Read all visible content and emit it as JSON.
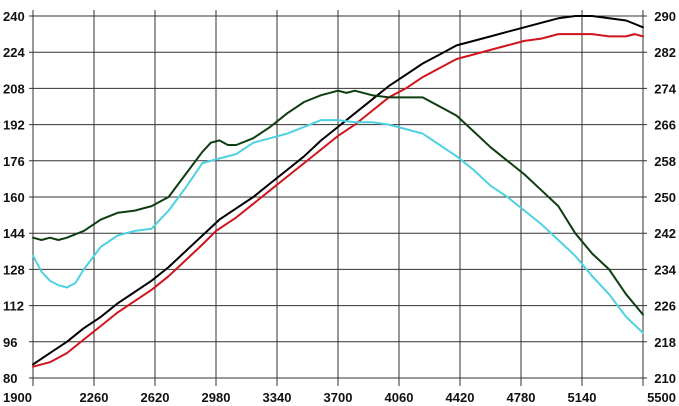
{
  "chart_data": {
    "type": "line",
    "title": "",
    "xlabel": "",
    "ylabel": "",
    "ylabel_right": "",
    "xlim": [
      1900,
      5500
    ],
    "ylim": [
      80,
      240
    ],
    "ylim_right": [
      210,
      290
    ],
    "x_ticks": [
      "1900",
      "2260",
      "2620",
      "2980",
      "3340",
      "3700",
      "4060",
      "4420",
      "4780",
      "5140",
      "5500"
    ],
    "y_ticks_left": [
      "80",
      "96",
      "112",
      "128",
      "144",
      "160",
      "176",
      "192",
      "208",
      "224",
      "240"
    ],
    "y_ticks_right": [
      "210",
      "218",
      "226",
      "234",
      "242",
      "250",
      "258",
      "266",
      "274",
      "282",
      "290"
    ],
    "grid": true,
    "series": [
      {
        "color": "#000000",
        "axis": "left",
        "points": [
          [
            1900,
            86
          ],
          [
            2000,
            91
          ],
          [
            2100,
            96
          ],
          [
            2200,
            102
          ],
          [
            2300,
            107
          ],
          [
            2400,
            113
          ],
          [
            2500,
            118
          ],
          [
            2600,
            123
          ],
          [
            2700,
            129
          ],
          [
            2800,
            136
          ],
          [
            2900,
            143
          ],
          [
            3000,
            150
          ],
          [
            3100,
            155
          ],
          [
            3200,
            160
          ],
          [
            3300,
            166
          ],
          [
            3400,
            172
          ],
          [
            3500,
            178
          ],
          [
            3600,
            185
          ],
          [
            3700,
            191
          ],
          [
            3800,
            197
          ],
          [
            3900,
            203
          ],
          [
            4000,
            209
          ],
          [
            4100,
            214
          ],
          [
            4200,
            219
          ],
          [
            4300,
            223
          ],
          [
            4400,
            227
          ],
          [
            4500,
            229
          ],
          [
            4600,
            231
          ],
          [
            4700,
            233
          ],
          [
            4800,
            235
          ],
          [
            4900,
            237
          ],
          [
            5000,
            239
          ],
          [
            5100,
            240
          ],
          [
            5200,
            240
          ],
          [
            5300,
            239
          ],
          [
            5400,
            238
          ],
          [
            5500,
            235
          ]
        ]
      },
      {
        "color": "#d0141e",
        "axis": "left",
        "points": [
          [
            1900,
            85
          ],
          [
            2000,
            87
          ],
          [
            2100,
            91
          ],
          [
            2200,
            97
          ],
          [
            2300,
            103
          ],
          [
            2400,
            109
          ],
          [
            2500,
            114
          ],
          [
            2600,
            119
          ],
          [
            2700,
            125
          ],
          [
            2800,
            132
          ],
          [
            2900,
            139
          ],
          [
            2980,
            145
          ],
          [
            3100,
            151
          ],
          [
            3200,
            157
          ],
          [
            3300,
            163
          ],
          [
            3400,
            169
          ],
          [
            3500,
            175
          ],
          [
            3600,
            181
          ],
          [
            3700,
            187
          ],
          [
            3800,
            192
          ],
          [
            3900,
            198
          ],
          [
            4000,
            204
          ],
          [
            4100,
            208
          ],
          [
            4200,
            213
          ],
          [
            4300,
            217
          ],
          [
            4400,
            221
          ],
          [
            4500,
            223
          ],
          [
            4600,
            225
          ],
          [
            4700,
            227
          ],
          [
            4800,
            229
          ],
          [
            4900,
            230
          ],
          [
            5000,
            232
          ],
          [
            5100,
            232
          ],
          [
            5200,
            232
          ],
          [
            5300,
            231
          ],
          [
            5400,
            231
          ],
          [
            5450,
            232
          ],
          [
            5500,
            231
          ]
        ]
      },
      {
        "color": "#0d3d10",
        "axis": "left",
        "points": [
          [
            1900,
            142
          ],
          [
            1950,
            141
          ],
          [
            2000,
            142
          ],
          [
            2050,
            141
          ],
          [
            2100,
            142
          ],
          [
            2200,
            145
          ],
          [
            2300,
            150
          ],
          [
            2400,
            153
          ],
          [
            2500,
            154
          ],
          [
            2600,
            156
          ],
          [
            2700,
            160
          ],
          [
            2800,
            170
          ],
          [
            2900,
            180
          ],
          [
            2950,
            184
          ],
          [
            3000,
            185
          ],
          [
            3050,
            183
          ],
          [
            3100,
            183
          ],
          [
            3200,
            186
          ],
          [
            3300,
            191
          ],
          [
            3400,
            197
          ],
          [
            3500,
            202
          ],
          [
            3600,
            205
          ],
          [
            3700,
            207
          ],
          [
            3750,
            206
          ],
          [
            3800,
            207
          ],
          [
            3900,
            205
          ],
          [
            4000,
            204
          ],
          [
            4100,
            204
          ],
          [
            4200,
            204
          ],
          [
            4300,
            200
          ],
          [
            4400,
            196
          ],
          [
            4500,
            189
          ],
          [
            4600,
            182
          ],
          [
            4700,
            176
          ],
          [
            4800,
            170
          ],
          [
            4900,
            163
          ],
          [
            5000,
            156
          ],
          [
            5100,
            144
          ],
          [
            5200,
            135
          ],
          [
            5300,
            128
          ],
          [
            5400,
            117
          ],
          [
            5500,
            108
          ]
        ]
      },
      {
        "color": "#4fd1e0",
        "axis": "left",
        "points": [
          [
            1900,
            134
          ],
          [
            1950,
            127
          ],
          [
            2000,
            123
          ],
          [
            2050,
            121
          ],
          [
            2100,
            120
          ],
          [
            2150,
            122
          ],
          [
            2200,
            128
          ],
          [
            2300,
            138
          ],
          [
            2400,
            143
          ],
          [
            2500,
            145
          ],
          [
            2600,
            146
          ],
          [
            2700,
            154
          ],
          [
            2800,
            164
          ],
          [
            2900,
            175
          ],
          [
            3000,
            177
          ],
          [
            3100,
            179
          ],
          [
            3200,
            184
          ],
          [
            3300,
            186
          ],
          [
            3400,
            188
          ],
          [
            3500,
            191
          ],
          [
            3600,
            194
          ],
          [
            3700,
            194
          ],
          [
            3800,
            193
          ],
          [
            3900,
            193
          ],
          [
            4000,
            192
          ],
          [
            4100,
            190
          ],
          [
            4200,
            188
          ],
          [
            4300,
            183
          ],
          [
            4400,
            178
          ],
          [
            4500,
            172
          ],
          [
            4600,
            165
          ],
          [
            4700,
            160
          ],
          [
            4800,
            154
          ],
          [
            4900,
            148
          ],
          [
            5000,
            141
          ],
          [
            5100,
            134
          ],
          [
            5200,
            125
          ],
          [
            5300,
            117
          ],
          [
            5400,
            107
          ],
          [
            5500,
            100
          ]
        ]
      }
    ]
  }
}
